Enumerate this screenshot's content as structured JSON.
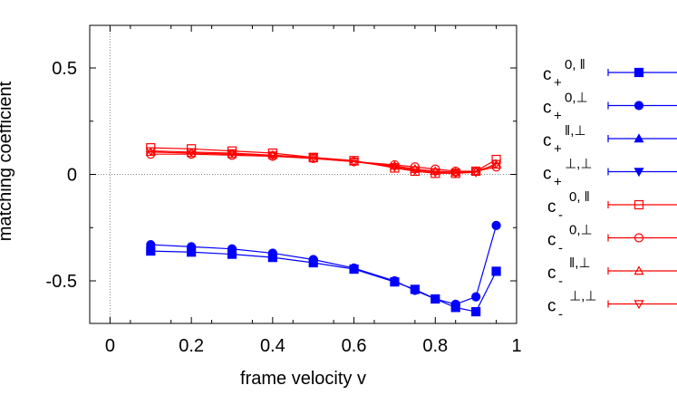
{
  "chart_data": {
    "type": "line",
    "title": "",
    "xlabel": "frame velocity v",
    "ylabel": "matching coefficient",
    "xlim": [
      -0.05,
      1.0
    ],
    "ylim": [
      -0.7,
      0.7
    ],
    "x_ticks": [
      0,
      0.2,
      0.4,
      0.6,
      0.8,
      1
    ],
    "x_tick_labels": [
      "0",
      "0.2",
      "0.4",
      "0.6",
      "0.8",
      "1"
    ],
    "y_ticks": [
      0.5,
      0,
      -0.5
    ],
    "y_tick_labels": [
      "0.5",
      "0",
      "-0.5"
    ],
    "zero_lines": true,
    "grid": false,
    "legend_position": "right-outside",
    "series": [
      {
        "name": "c+ 0,‖",
        "main": "c",
        "sub": "+",
        "sup": "0, ‖",
        "color": "#0000ff",
        "marker": "square-filled",
        "x": [
          0.1,
          0.2,
          0.3,
          0.4,
          0.5,
          0.6,
          0.7,
          0.75,
          0.8,
          0.85,
          0.9,
          0.95
        ],
        "y": [
          -0.36,
          -0.365,
          -0.375,
          -0.39,
          -0.415,
          -0.445,
          -0.505,
          -0.54,
          -0.585,
          -0.625,
          -0.645,
          -0.455
        ]
      },
      {
        "name": "c+ 0,⊥",
        "main": "c",
        "sub": "+",
        "sup": "0,⊥",
        "color": "#0000ff",
        "marker": "circle-filled",
        "x": [
          0.1,
          0.2,
          0.3,
          0.4,
          0.5,
          0.6,
          0.7,
          0.75,
          0.8,
          0.85,
          0.9,
          0.95
        ],
        "y": [
          -0.33,
          -0.34,
          -0.35,
          -0.37,
          -0.4,
          -0.44,
          -0.5,
          -0.545,
          -0.585,
          -0.61,
          -0.575,
          -0.24
        ]
      },
      {
        "name": "c+ ‖,⊥",
        "main": "c",
        "sub": "+",
        "sup": "‖,⊥",
        "color": "#0000ff",
        "marker": "triangle-up-filled",
        "x": [],
        "y": []
      },
      {
        "name": "c+ ⊥,⊥",
        "main": "c",
        "sub": "+",
        "sup": "⊥,⊥",
        "color": "#0000ff",
        "marker": "triangle-down-filled",
        "x": [],
        "y": []
      },
      {
        "name": "c- 0,‖",
        "main": "c",
        "sub": "-",
        "sup": "0, ‖",
        "color": "#ff0000",
        "marker": "square-open",
        "x": [
          0.1,
          0.2,
          0.3,
          0.4,
          0.5,
          0.6,
          0.7,
          0.75,
          0.8,
          0.85,
          0.9,
          0.95
        ],
        "y": [
          0.125,
          0.12,
          0.11,
          0.1,
          0.08,
          0.065,
          0.03,
          0.015,
          0.005,
          0.005,
          0.015,
          0.07
        ]
      },
      {
        "name": "c- 0,⊥",
        "main": "c",
        "sub": "-",
        "sup": "0,⊥",
        "color": "#ff0000",
        "marker": "circle-open",
        "x": [
          0.1,
          0.2,
          0.3,
          0.4,
          0.5,
          0.6,
          0.7,
          0.75,
          0.8,
          0.85,
          0.9,
          0.95
        ],
        "y": [
          0.095,
          0.095,
          0.09,
          0.085,
          0.075,
          0.06,
          0.045,
          0.035,
          0.025,
          0.015,
          0.015,
          0.035
        ]
      },
      {
        "name": "c- ‖,⊥",
        "main": "c",
        "sub": "-",
        "sup": "‖,⊥",
        "color": "#ff0000",
        "marker": "triangle-up-open",
        "x": [
          0.1,
          0.2,
          0.3,
          0.4,
          0.5,
          0.6,
          0.7,
          0.75,
          0.8,
          0.85,
          0.9,
          0.95
        ],
        "y": [
          0.105,
          0.1,
          0.095,
          0.09,
          0.075,
          0.06,
          0.04,
          0.025,
          0.015,
          0.01,
          0.015,
          0.045
        ]
      },
      {
        "name": "c- ⊥,⊥",
        "main": "c",
        "sub": "-",
        "sup": "⊥,⊥",
        "color": "#ff0000",
        "marker": "triangle-down-open",
        "x": [
          0.1,
          0.2,
          0.3,
          0.4,
          0.5,
          0.6,
          0.7,
          0.75,
          0.8,
          0.85,
          0.9,
          0.95
        ],
        "y": [
          0.11,
          0.105,
          0.1,
          0.09,
          0.08,
          0.06,
          0.035,
          0.02,
          0.01,
          0.005,
          0.01,
          0.05
        ]
      }
    ]
  }
}
